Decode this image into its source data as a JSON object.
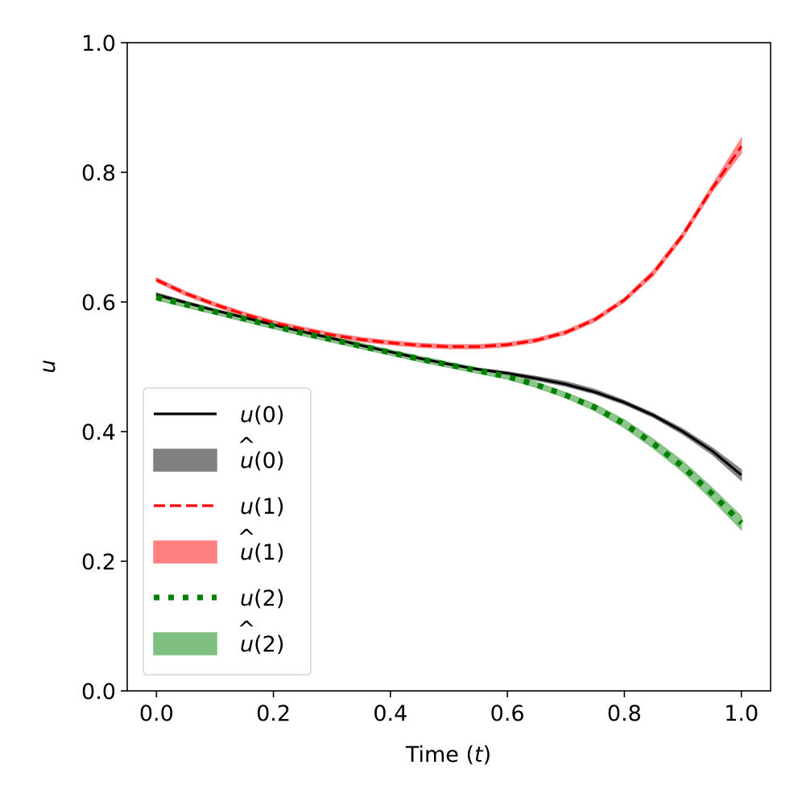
{
  "chart_data": {
    "type": "line",
    "xlabel_main": "Time (",
    "xlabel_var": "t",
    "xlabel_end": ")",
    "ylabel": "u",
    "xlim": [
      -0.05,
      1.05
    ],
    "ylim": [
      0.0,
      1.0
    ],
    "xticks": [
      0.0,
      0.2,
      0.4,
      0.6,
      0.8,
      1.0
    ],
    "yticks": [
      0.0,
      0.2,
      0.4,
      0.6,
      0.8,
      1.0
    ],
    "xtick_labels": [
      "0.0",
      "0.2",
      "0.4",
      "0.6",
      "0.8",
      "1.0"
    ],
    "ytick_labels": [
      "0.0",
      "0.2",
      "0.4",
      "0.6",
      "0.8",
      "1.0"
    ],
    "grid": false,
    "legend_position": "lower-left",
    "x": [
      0.0,
      0.05,
      0.1,
      0.15,
      0.2,
      0.25,
      0.3,
      0.35,
      0.4,
      0.45,
      0.5,
      0.55,
      0.6,
      0.65,
      0.7,
      0.75,
      0.8,
      0.85,
      0.9,
      0.95,
      1.0
    ],
    "series": [
      {
        "name": "u(0)",
        "kind": "line",
        "color": "#000000",
        "style": "solid",
        "values": [
          0.611,
          0.599,
          0.587,
          0.576,
          0.565,
          0.554,
          0.544,
          0.533,
          0.523,
          0.513,
          0.504,
          0.496,
          0.49,
          0.482,
          0.473,
          0.461,
          0.445,
          0.425,
          0.4,
          0.37,
          0.333
        ]
      },
      {
        "name": "û(0)",
        "kind": "band",
        "color": "#808080",
        "lower": [
          0.608,
          0.597,
          0.585,
          0.574,
          0.563,
          0.552,
          0.542,
          0.531,
          0.521,
          0.511,
          0.502,
          0.494,
          0.487,
          0.479,
          0.47,
          0.458,
          0.442,
          0.422,
          0.396,
          0.365,
          0.325
        ],
        "upper": [
          0.614,
          0.601,
          0.589,
          0.578,
          0.567,
          0.556,
          0.546,
          0.535,
          0.525,
          0.515,
          0.506,
          0.498,
          0.492,
          0.485,
          0.477,
          0.465,
          0.448,
          0.428,
          0.404,
          0.375,
          0.341
        ]
      },
      {
        "name": "u(1)",
        "kind": "line",
        "color": "#ff0000",
        "style": "dashed",
        "values": [
          0.634,
          0.613,
          0.596,
          0.581,
          0.568,
          0.558,
          0.549,
          0.542,
          0.537,
          0.533,
          0.531,
          0.531,
          0.534,
          0.541,
          0.553,
          0.573,
          0.603,
          0.645,
          0.703,
          0.775,
          0.84
        ]
      },
      {
        "name": "û(1)",
        "kind": "band",
        "color": "#ff8080",
        "lower": [
          0.631,
          0.61,
          0.593,
          0.578,
          0.565,
          0.555,
          0.546,
          0.539,
          0.534,
          0.53,
          0.528,
          0.528,
          0.531,
          0.538,
          0.55,
          0.57,
          0.6,
          0.641,
          0.699,
          0.77,
          0.83
        ],
        "upper": [
          0.637,
          0.616,
          0.599,
          0.584,
          0.571,
          0.561,
          0.552,
          0.545,
          0.54,
          0.536,
          0.534,
          0.534,
          0.537,
          0.544,
          0.556,
          0.576,
          0.606,
          0.649,
          0.707,
          0.78,
          0.852
        ]
      },
      {
        "name": "u(2)",
        "kind": "line",
        "color": "#008000",
        "style": "dotted",
        "values": [
          0.607,
          0.596,
          0.585,
          0.574,
          0.563,
          0.552,
          0.542,
          0.532,
          0.522,
          0.512,
          0.503,
          0.494,
          0.485,
          0.472,
          0.456,
          0.437,
          0.412,
          0.381,
          0.346,
          0.304,
          0.259
        ]
      },
      {
        "name": "û(2)",
        "kind": "band",
        "color": "#7fbf7f",
        "lower": [
          0.603,
          0.592,
          0.581,
          0.57,
          0.559,
          0.548,
          0.538,
          0.528,
          0.518,
          0.508,
          0.499,
          0.49,
          0.481,
          0.468,
          0.452,
          0.432,
          0.406,
          0.374,
          0.338,
          0.295,
          0.249
        ],
        "upper": [
          0.611,
          0.6,
          0.589,
          0.578,
          0.567,
          0.556,
          0.546,
          0.536,
          0.526,
          0.516,
          0.507,
          0.498,
          0.489,
          0.476,
          0.46,
          0.442,
          0.418,
          0.388,
          0.354,
          0.313,
          0.269
        ]
      }
    ]
  },
  "legend": [
    {
      "kind": "line",
      "base": "u",
      "hat": false,
      "index": "(0)",
      "color": "#000000",
      "style": "solid"
    },
    {
      "kind": "band",
      "base": "u",
      "hat": true,
      "index": "(0)",
      "color": "#808080"
    },
    {
      "kind": "line",
      "base": "u",
      "hat": false,
      "index": "(1)",
      "color": "#ff0000",
      "style": "dashed"
    },
    {
      "kind": "band",
      "base": "u",
      "hat": true,
      "index": "(1)",
      "color": "#ff8080"
    },
    {
      "kind": "line",
      "base": "u",
      "hat": false,
      "index": "(2)",
      "color": "#008000",
      "style": "dotted"
    },
    {
      "kind": "band",
      "base": "u",
      "hat": true,
      "index": "(2)",
      "color": "#7fbf7f"
    }
  ]
}
